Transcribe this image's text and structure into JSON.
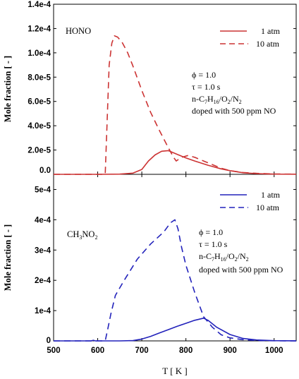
{
  "figure": {
    "xlabel": "T [ K ]",
    "x_ticks": [
      "500",
      "600",
      "700",
      "800",
      "900",
      "1000"
    ]
  },
  "chart_data": [
    {
      "type": "line",
      "panel": "top",
      "label": "HONO",
      "ylabel": "Mole fraction [ - ]",
      "xlim": [
        500,
        1050
      ],
      "ylim": [
        0,
        0.00014
      ],
      "y_ticks": [
        {
          "value": 0,
          "label": "0.0"
        },
        {
          "value": 2e-05,
          "label": "2.0e-5"
        },
        {
          "value": 4e-05,
          "label": "4.0e-5"
        },
        {
          "value": 6e-05,
          "label": "6.0e-5"
        },
        {
          "value": 8e-05,
          "label": "8.0e-5"
        },
        {
          "value": 0.0001,
          "label": "1.0e-4"
        },
        {
          "value": 0.00012,
          "label": "1.2e-4"
        },
        {
          "value": 0.00014,
          "label": "1.4e-4"
        }
      ],
      "color": "#cc3333",
      "annotation": {
        "phi": "ϕ = 1.0",
        "tau": "τ = 1.0 s",
        "mixture_prefix": "n-C",
        "mixture_sub1": "7",
        "mixture_mid1": "H",
        "mixture_sub2": "16",
        "mixture_mid2": "/O",
        "mixture_sub3": "2",
        "mixture_mid3": "/N",
        "mixture_sub4": "2",
        "doping": "doped with 500 ppm NO"
      },
      "series": [
        {
          "name": "1 atm",
          "style": "solid",
          "x": [
            500,
            600,
            650,
            680,
            700,
            715,
            730,
            745,
            760,
            770,
            780,
            790,
            800,
            820,
            850,
            880,
            900,
            930,
            960,
            1000,
            1050
          ],
          "y": [
            0,
            0,
            2e-07,
            1e-06,
            4e-06,
            1.1e-05,
            1.6e-05,
            1.9e-05,
            1.95e-05,
            1.8e-05,
            1.65e-05,
            1.5e-05,
            1.35e-05,
            1.1e-05,
            7.5e-06,
            4.5e-06,
            3e-06,
            1.3e-06,
            6e-07,
            2e-07,
            1e-07
          ]
        },
        {
          "name": "10 atm",
          "style": "dashed",
          "x": [
            500,
            600,
            617,
            621,
            626,
            632,
            638,
            645,
            655,
            668,
            680,
            700,
            720,
            740,
            760,
            772,
            778,
            790,
            805,
            820,
            840,
            860,
            880,
            900,
            930,
            960,
            1000,
            1050
          ],
          "y": [
            0,
            0,
            0,
            4e-05,
            9e-05,
            0.000108,
            0.000114,
            0.000113,
            0.000109,
            0.0001,
            8.9e-05,
            6.9e-05,
            5.1e-05,
            3.6e-05,
            2.2e-05,
            1.4e-05,
            1.1e-05,
            1.4e-05,
            1.55e-05,
            1.4e-05,
            1.1e-05,
            8e-06,
            5e-06,
            3e-06,
            1.5e-06,
            8e-07,
            3e-07,
            1e-07
          ]
        }
      ]
    },
    {
      "type": "line",
      "panel": "bottom",
      "label_prefix": "CH",
      "label_sub1": "3",
      "label_mid": "NO",
      "label_sub2": "2",
      "ylabel": "Mole fraction [ - ]",
      "xlim": [
        500,
        1050
      ],
      "ylim": [
        0,
        0.00055
      ],
      "y_ticks": [
        {
          "value": 0,
          "label": "0"
        },
        {
          "value": 0.0001,
          "label": "1e-4"
        },
        {
          "value": 0.0002,
          "label": "2e-4"
        },
        {
          "value": 0.0003,
          "label": "3e-4"
        },
        {
          "value": 0.0004,
          "label": "4e-4"
        },
        {
          "value": 0.0005,
          "label": "5e-4"
        }
      ],
      "color": "#2222bb",
      "annotation": {
        "phi": "ϕ = 1.0",
        "tau": "τ = 1.0 s",
        "mixture_prefix": "n-C",
        "mixture_sub1": "7",
        "mixture_mid1": "H",
        "mixture_sub2": "16",
        "mixture_mid2": "/O",
        "mixture_sub3": "2",
        "mixture_mid3": "/N",
        "mixture_sub4": "2",
        "doping": "doped with 500 ppm NO"
      },
      "series": [
        {
          "name": "1 atm",
          "style": "solid",
          "x": [
            500,
            585,
            590,
            595,
            600,
            650,
            680,
            700,
            720,
            740,
            760,
            780,
            800,
            820,
            840,
            850,
            870,
            900,
            930,
            960,
            1000,
            1050
          ],
          "y": [
            0,
            0,
            2e-06,
            0,
            0,
            0,
            1e-06,
            6e-06,
            1.5e-05,
            2.6e-05,
            3.7e-05,
            4.8e-05,
            5.8e-05,
            6.8e-05,
            7.5e-05,
            6.8e-05,
            4.5e-05,
            2.1e-05,
            8e-06,
            3e-06,
            8e-07,
            2e-07
          ]
        },
        {
          "name": "10 atm",
          "style": "dashed",
          "x": [
            500,
            600,
            617,
            623,
            630,
            640,
            660,
            690,
            720,
            750,
            765,
            775,
            782,
            790,
            800,
            820,
            840,
            860,
            880,
            900,
            930,
            960,
            1000,
            1050
          ],
          "y": [
            0,
            0,
            0,
            4e-05,
            9e-05,
            0.00015,
            0.0002,
            0.00027,
            0.00032,
            0.00036,
            0.00039,
            0.0004,
            0.00037,
            0.00031,
            0.00025,
            0.00016,
            8e-05,
            4.5e-05,
            2e-05,
            1e-05,
            4e-06,
            1.5e-06,
            4e-07,
            1e-07
          ]
        }
      ]
    }
  ]
}
